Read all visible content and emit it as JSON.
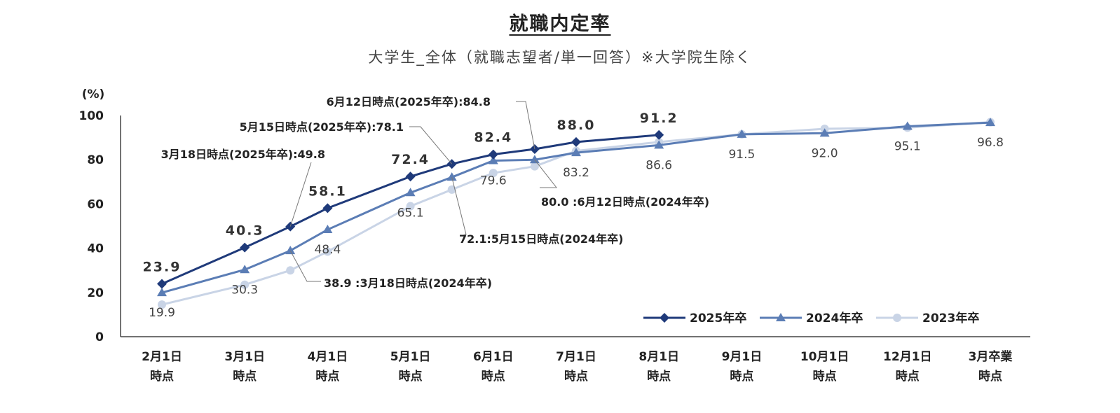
{
  "header": {
    "title": "就職内定率",
    "subtitle": "大学生_全体（就職志望者/単一回答）※大学院生除く"
  },
  "chart_data": {
    "type": "line",
    "title": "就職内定率",
    "subtitle": "大学生_全体（就職志望者/単一回答）※大学院生除く",
    "y_unit": "(%)",
    "ylim": [
      0,
      100
    ],
    "y_ticks": [
      "0",
      "20",
      "40",
      "60",
      "80",
      "100"
    ],
    "categories": [
      [
        "2月1日",
        "時点"
      ],
      [
        "3月1日",
        "時点"
      ],
      [
        "4月1日",
        "時点"
      ],
      [
        "5月1日",
        "時点"
      ],
      [
        "6月1日",
        "時点"
      ],
      [
        "7月1日",
        "時点"
      ],
      [
        "8月1日",
        "時点"
      ],
      [
        "9月1日",
        "時点"
      ],
      [
        "10月1日",
        "時点"
      ],
      [
        "12月1日",
        "時点"
      ],
      [
        "3月卒業",
        "時点"
      ]
    ],
    "grid": false,
    "legend_position": "bottom-right",
    "series": [
      {
        "name": "2025年卒",
        "color": "#1f3a7a",
        "marker": "diamond",
        "points": [
          {
            "x": 0,
            "y": 23.9,
            "label": "23.9"
          },
          {
            "x": 1,
            "y": 40.3,
            "label": "40.3"
          },
          {
            "x": 1.55,
            "y": 49.8
          },
          {
            "x": 2,
            "y": 58.1,
            "label": "58.1"
          },
          {
            "x": 3,
            "y": 72.4,
            "label": "72.4"
          },
          {
            "x": 3.5,
            "y": 78.1
          },
          {
            "x": 4,
            "y": 82.4,
            "label": "82.4"
          },
          {
            "x": 4.5,
            "y": 84.8
          },
          {
            "x": 5,
            "y": 88.0,
            "label": "88.0"
          },
          {
            "x": 6,
            "y": 91.2,
            "label": "91.2"
          }
        ]
      },
      {
        "name": "2024年卒",
        "color": "#5b7db5",
        "marker": "triangle",
        "points": [
          {
            "x": 0,
            "y": 19.9,
            "label": "19.9"
          },
          {
            "x": 1,
            "y": 30.3,
            "label": "30.3"
          },
          {
            "x": 1.55,
            "y": 38.9
          },
          {
            "x": 2,
            "y": 48.4,
            "label": "48.4"
          },
          {
            "x": 3,
            "y": 65.1,
            "label": "65.1"
          },
          {
            "x": 3.5,
            "y": 72.1
          },
          {
            "x": 4,
            "y": 79.6,
            "label": "79.6"
          },
          {
            "x": 4.5,
            "y": 80.0
          },
          {
            "x": 5,
            "y": 83.2,
            "label": "83.2"
          },
          {
            "x": 6,
            "y": 86.6,
            "label": "86.6"
          },
          {
            "x": 7,
            "y": 91.5,
            "label": "91.5"
          },
          {
            "x": 8,
            "y": 92.0,
            "label": "92.0"
          },
          {
            "x": 9,
            "y": 95.1,
            "label": "95.1"
          },
          {
            "x": 10,
            "y": 96.8,
            "label": "96.8"
          }
        ]
      },
      {
        "name": "2023年卒",
        "color": "#c9d4e6",
        "marker": "circle",
        "points": [
          {
            "x": 0,
            "y": 14.5
          },
          {
            "x": 1,
            "y": 23.5
          },
          {
            "x": 1.55,
            "y": 30.0
          },
          {
            "x": 2,
            "y": 38.5
          },
          {
            "x": 3,
            "y": 59.0
          },
          {
            "x": 3.5,
            "y": 66.5
          },
          {
            "x": 4,
            "y": 74.0
          },
          {
            "x": 4.5,
            "y": 77.0
          },
          {
            "x": 5,
            "y": 84.0
          },
          {
            "x": 6,
            "y": 88.0
          },
          {
            "x": 7,
            "y": 91.5
          },
          {
            "x": 8,
            "y": 94.0
          },
          {
            "x": 9,
            "y": 94.5
          },
          {
            "x": 10,
            "y": 97.0
          }
        ]
      }
    ],
    "annotations": [
      {
        "text": "6月12日時点(2025年卒):84.8",
        "series": 0,
        "x": 4.5,
        "y": 84.8
      },
      {
        "text": "5月15日時点(2025年卒):78.1",
        "series": 0,
        "x": 3.5,
        "y": 78.1
      },
      {
        "text": "3月18日時点(2025年卒):49.8",
        "series": 0,
        "x": 1.55,
        "y": 49.8
      },
      {
        "text": "80.0 :6月12日時点(2024年卒)",
        "series": 1,
        "x": 4.5,
        "y": 80.0
      },
      {
        "text": "72.1:5月15日時点(2024年卒)",
        "series": 1,
        "x": 3.5,
        "y": 72.1
      },
      {
        "text": "38.9 :3月18日時点(2024年卒)",
        "series": 1,
        "x": 1.55,
        "y": 38.9
      }
    ]
  }
}
